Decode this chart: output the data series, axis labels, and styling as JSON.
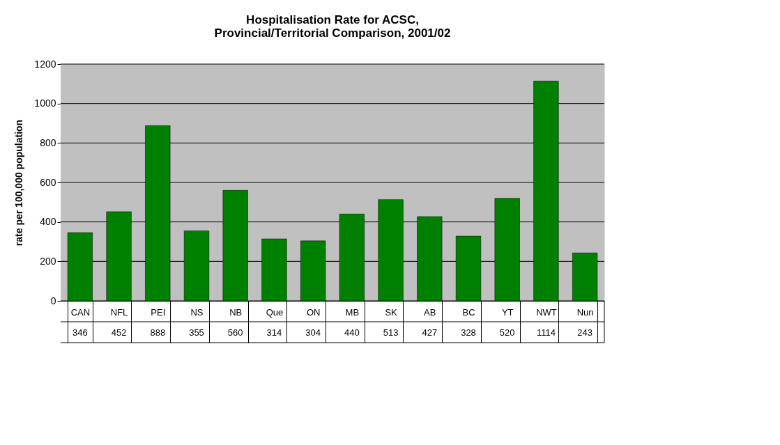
{
  "chart_data": {
    "type": "bar",
    "title": [
      "Hospitalisation Rate for ACSC,",
      "Provincial/Territorial Comparison, 2001/02"
    ],
    "ylabel": "rate per 100,000 population",
    "categories": [
      "CAN",
      "NFL",
      "PEI",
      "NS",
      "NB",
      "Que",
      "ON",
      "MB",
      "SK",
      "AB",
      "BC",
      "YT",
      "NWT",
      "Nun"
    ],
    "values": [
      346,
      452,
      888,
      355,
      560,
      314,
      304,
      440,
      513,
      427,
      328,
      520,
      1114,
      243
    ],
    "color": "#008000",
    "ylim": [
      0,
      1200
    ],
    "yticks": [
      0,
      200,
      400,
      600,
      800,
      1000,
      1200
    ],
    "grid": "y",
    "data_labels": true
  }
}
